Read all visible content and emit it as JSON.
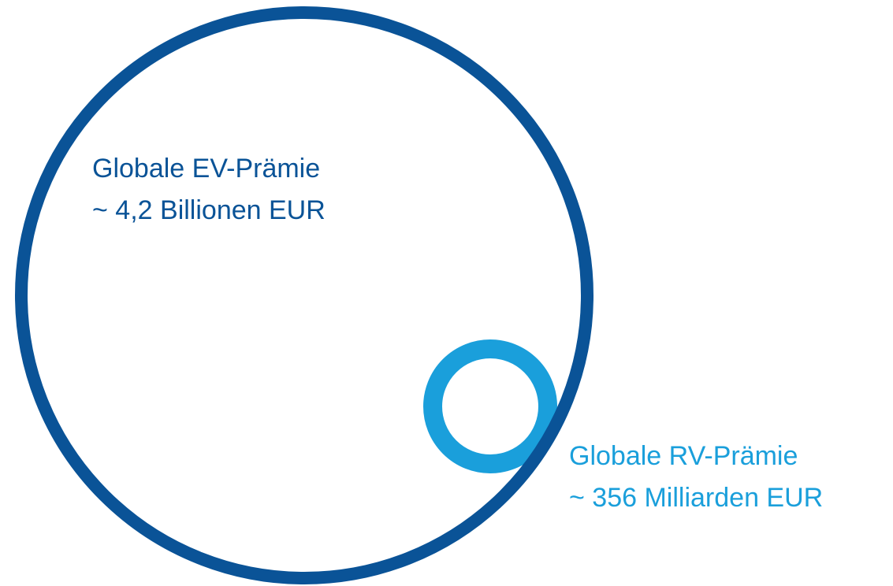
{
  "nodes": [
    {
      "title": "Globale EV-Prämie",
      "value": "~ 4,2 Billionen EUR"
    },
    {
      "title": "Globale RV-Prämie",
      "value": "~ 356 Milliarden EUR"
    }
  ]
}
